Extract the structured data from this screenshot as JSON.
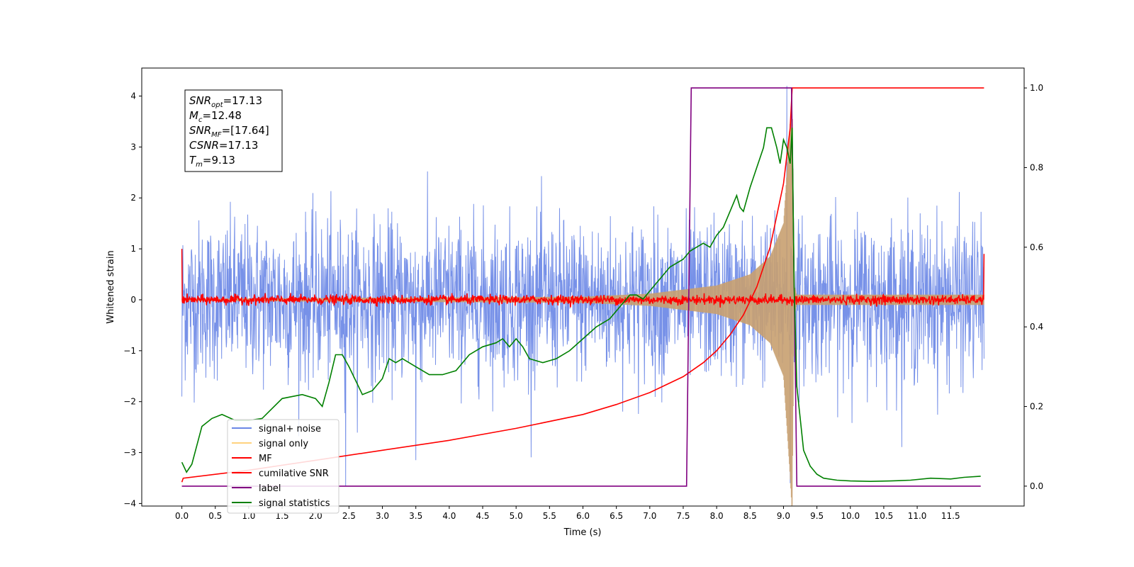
{
  "chart_data": {
    "type": "line",
    "xlabel": "Time (s)",
    "ylabel": "Whitened strain",
    "xlim": [
      -0.6,
      12.6
    ],
    "ylim": [
      -4.05,
      4.55
    ],
    "y2lim": [
      -0.05,
      1.05
    ],
    "x_ticks": [
      0.0,
      0.5,
      1.0,
      1.5,
      2.0,
      2.5,
      3.0,
      3.5,
      4.0,
      4.5,
      5.0,
      5.5,
      6.0,
      6.5,
      7.0,
      7.5,
      8.0,
      8.5,
      9.0,
      9.5,
      10.0,
      10.5,
      11.0,
      11.5
    ],
    "x_tick_labels": [
      "0.0",
      "0.5",
      "1.0",
      "1.5",
      "2.0",
      "2.5",
      "3.0",
      "3.5",
      "4.0",
      "4.5",
      "5.0",
      "5.5",
      "6.0",
      "6.5",
      "7.0",
      "7.5",
      "8.0",
      "8.5",
      "9.0",
      "9.5",
      "10.0",
      "10.5",
      "11.0",
      "11.5"
    ],
    "y_ticks": [
      -4,
      -3,
      -2,
      -1,
      0,
      1,
      2,
      3,
      4
    ],
    "y_tick_labels": [
      "−4",
      "−3",
      "−2",
      "−1",
      "0",
      "1",
      "2",
      "3",
      "4"
    ],
    "y2_ticks": [
      0.0,
      0.2,
      0.4,
      0.6,
      0.8,
      1.0
    ],
    "y2_tick_labels": [
      "0.0",
      "0.2",
      "0.4",
      "0.6",
      "0.8",
      "1.0"
    ],
    "legend_position": "lower-left",
    "legend": [
      {
        "name": "signal+ noise",
        "color": "#6b88e6"
      },
      {
        "name": "signal only",
        "color": "#ffd27f"
      },
      {
        "name": "MF",
        "color": "#ff0000"
      },
      {
        "name": "cumilative SNR",
        "color": "#ff0000"
      },
      {
        "name": "label",
        "color": "#800080"
      },
      {
        "name": "signal statistics",
        "color": "#008000"
      }
    ],
    "annotation": [
      {
        "base": "SNR",
        "sub": "opt",
        "value": "=17.13"
      },
      {
        "base": "M",
        "sub": "c",
        "value": "=12.48"
      },
      {
        "base": "SNR",
        "sub": "MF",
        "value": "=[17.64]"
      },
      {
        "base": "CSNR",
        "sub": "",
        "value": "=17.13"
      },
      {
        "base": "T",
        "sub": "m",
        "value": "=9.13"
      }
    ],
    "series": [
      {
        "name": "signal+ noise",
        "axis": "left",
        "description_range": [
          -3.7,
          4.2
        ],
        "x_range": [
          0.0,
          12.0
        ],
        "typical_envelope": [
          -2.0,
          2.0
        ],
        "peak_points": [
          [
            9.05,
            4.2
          ],
          [
            2.45,
            -3.65
          ],
          [
            9.1,
            -3.6
          ],
          [
            0.0,
            -1.9
          ],
          [
            3.5,
            -3.15
          ]
        ]
      },
      {
        "name": "signal only",
        "axis": "left",
        "x_range": [
          0.0,
          12.0
        ],
        "chirp_envelope": [
          [
            0.0,
            0.02
          ],
          [
            6.0,
            0.06
          ],
          [
            7.0,
            0.12
          ],
          [
            8.0,
            0.28
          ],
          [
            8.5,
            0.5
          ],
          [
            8.8,
            0.85
          ],
          [
            9.0,
            1.5
          ],
          [
            9.1,
            3.5
          ],
          [
            9.13,
            4.2
          ],
          [
            9.16,
            0.3
          ],
          [
            9.2,
            0.1
          ],
          [
            12.0,
            0.1
          ]
        ]
      },
      {
        "name": "MF",
        "axis": "left",
        "x_range": [
          0.0,
          12.0
        ],
        "envelope": 0.1,
        "edge_values": [
          [
            0.0,
            1.0
          ],
          [
            12.0,
            0.9
          ]
        ]
      },
      {
        "name": "cumilative SNR",
        "axis": "right",
        "x": [
          0.0,
          0.02,
          1.0,
          2.0,
          3.0,
          4.0,
          5.0,
          6.0,
          6.5,
          7.0,
          7.5,
          7.8,
          8.0,
          8.2,
          8.4,
          8.6,
          8.8,
          9.0,
          9.1,
          9.13,
          12.0
        ],
        "y": [
          0.01,
          0.02,
          0.04,
          0.065,
          0.09,
          0.115,
          0.145,
          0.18,
          0.205,
          0.235,
          0.275,
          0.31,
          0.34,
          0.38,
          0.43,
          0.5,
          0.6,
          0.76,
          0.9,
          1.0,
          1.0
        ]
      },
      {
        "name": "label",
        "axis": "right",
        "x": [
          0.0,
          7.55,
          7.62,
          9.12,
          9.2,
          11.95
        ],
        "y": [
          0.0,
          0.0,
          1.0,
          1.0,
          0.0,
          0.0
        ]
      },
      {
        "name": "signal statistics",
        "axis": "right",
        "x": [
          0.0,
          0.07,
          0.15,
          0.3,
          0.45,
          0.6,
          0.8,
          1.0,
          1.2,
          1.5,
          1.8,
          2.0,
          2.1,
          2.2,
          2.3,
          2.4,
          2.5,
          2.7,
          2.85,
          3.0,
          3.1,
          3.2,
          3.3,
          3.5,
          3.7,
          3.9,
          4.1,
          4.3,
          4.5,
          4.7,
          4.8,
          4.9,
          5.0,
          5.1,
          5.2,
          5.4,
          5.6,
          5.8,
          6.0,
          6.2,
          6.4,
          6.6,
          6.7,
          6.8,
          6.9,
          7.0,
          7.1,
          7.2,
          7.3,
          7.4,
          7.5,
          7.6,
          7.7,
          7.8,
          7.9,
          8.0,
          8.1,
          8.2,
          8.3,
          8.35,
          8.4,
          8.5,
          8.6,
          8.7,
          8.75,
          8.82,
          8.9,
          8.95,
          9.0,
          9.05,
          9.1,
          9.13,
          9.16,
          9.2,
          9.3,
          9.4,
          9.5,
          9.6,
          9.8,
          10.0,
          10.3,
          10.6,
          10.9,
          11.2,
          11.5,
          11.7,
          11.95
        ],
        "y": [
          0.06,
          0.035,
          0.055,
          0.15,
          0.17,
          0.18,
          0.165,
          0.165,
          0.17,
          0.22,
          0.23,
          0.22,
          0.2,
          0.26,
          0.33,
          0.33,
          0.3,
          0.23,
          0.24,
          0.27,
          0.32,
          0.31,
          0.32,
          0.3,
          0.28,
          0.28,
          0.29,
          0.33,
          0.35,
          0.36,
          0.37,
          0.35,
          0.37,
          0.35,
          0.32,
          0.31,
          0.32,
          0.34,
          0.37,
          0.4,
          0.42,
          0.46,
          0.48,
          0.48,
          0.47,
          0.49,
          0.51,
          0.53,
          0.55,
          0.56,
          0.57,
          0.59,
          0.6,
          0.61,
          0.6,
          0.63,
          0.65,
          0.69,
          0.73,
          0.7,
          0.69,
          0.75,
          0.8,
          0.85,
          0.9,
          0.9,
          0.85,
          0.81,
          0.87,
          0.85,
          0.81,
          0.9,
          0.5,
          0.25,
          0.09,
          0.05,
          0.03,
          0.02,
          0.015,
          0.013,
          0.012,
          0.013,
          0.015,
          0.02,
          0.018,
          0.022,
          0.025
        ]
      }
    ]
  }
}
